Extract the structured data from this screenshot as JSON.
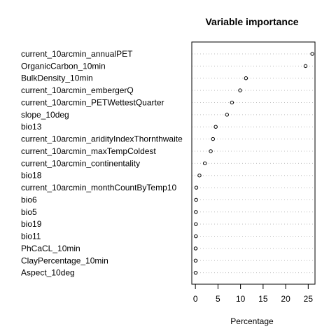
{
  "chart_data": {
    "type": "dotchart",
    "title": "Variable importance",
    "xlabel": "Percentage",
    "ylabel": "",
    "xlim": [
      -0.8,
      26.5
    ],
    "xticks": [
      0,
      5,
      10,
      15,
      20,
      25
    ],
    "grid": "dotted horizontal lines per variable",
    "legend": "none",
    "categories": [
      "current_10arcmin_annualPET",
      "OrganicCarbon_10min",
      "BulkDensity_10min",
      "current_10arcmin_embergerQ",
      "current_10arcmin_PETWettestQuarter",
      "slope_10deg",
      "bio13",
      "current_10arcmin_aridityIndexThornthwaite",
      "current_10arcmin_maxTempColdest",
      "current_10arcmin_continentality",
      "bio18",
      "current_10arcmin_monthCountByTemp10",
      "bio6",
      "bio5",
      "bio19",
      "bio11",
      "PhCaCL_10min",
      "ClayPercentage_10min",
      "Aspect_10deg"
    ],
    "values": [
      25.9,
      24.4,
      11.2,
      9.9,
      8.1,
      7.0,
      4.5,
      3.9,
      3.4,
      2.1,
      0.9,
      0.2,
      0.15,
      0.1,
      0.1,
      0.1,
      0.05,
      0.05,
      0.05
    ]
  }
}
